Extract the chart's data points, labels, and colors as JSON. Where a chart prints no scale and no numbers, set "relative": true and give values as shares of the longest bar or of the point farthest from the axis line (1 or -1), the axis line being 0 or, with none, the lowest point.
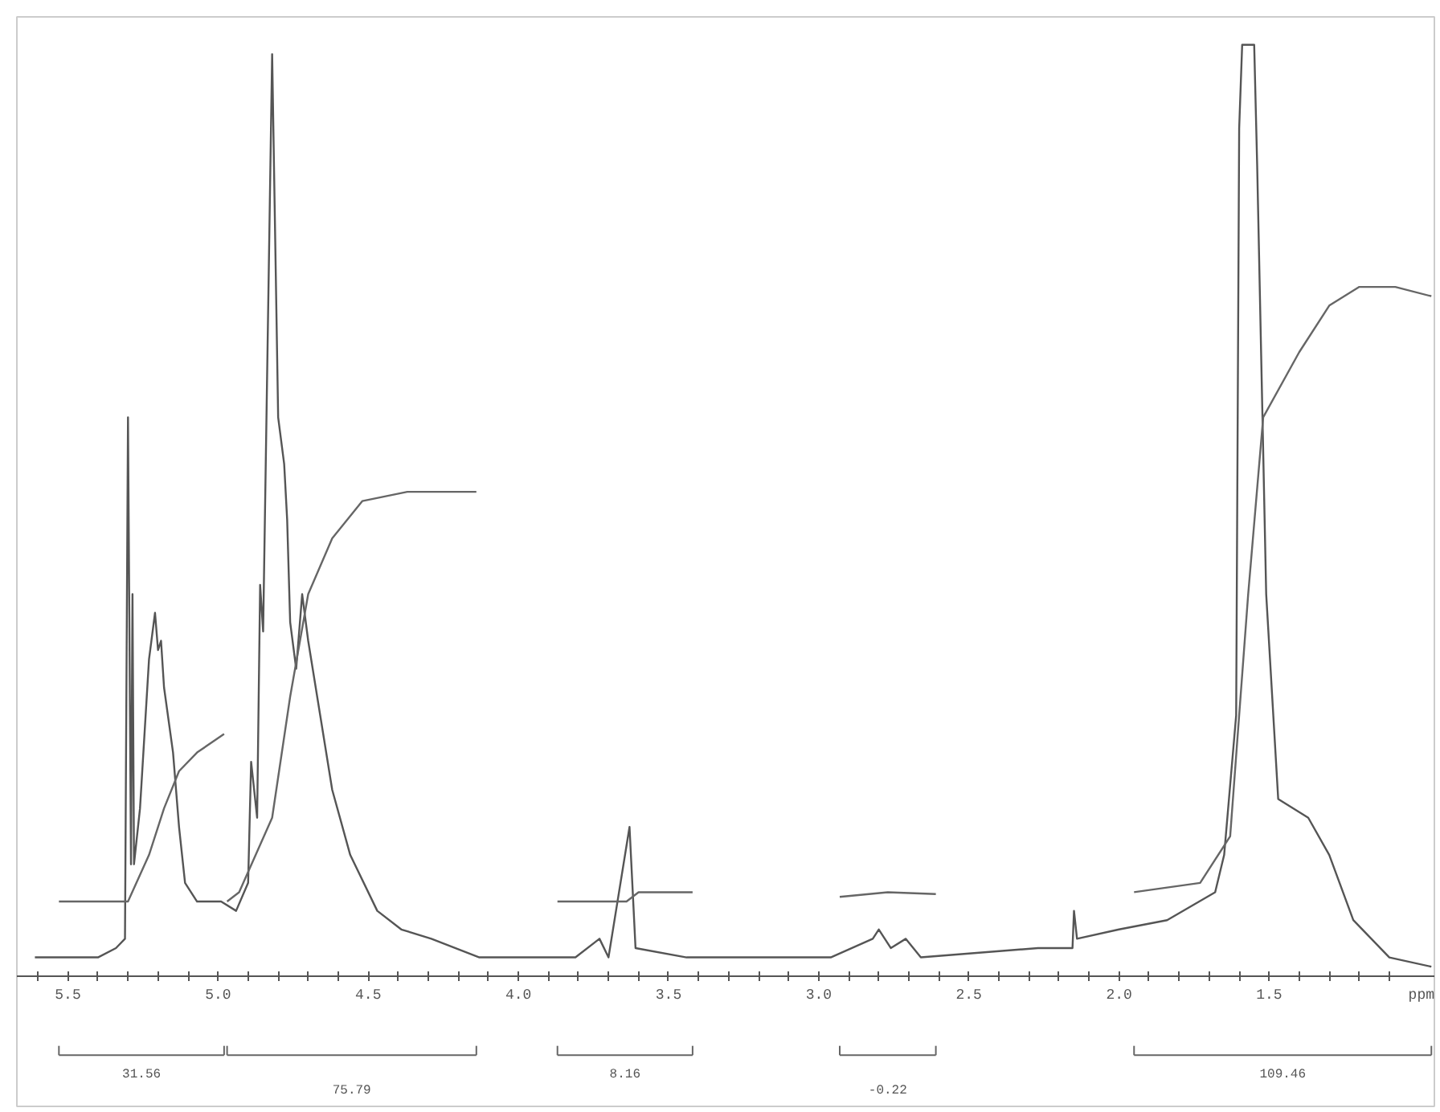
{
  "chart_data": {
    "type": "line",
    "relative": true,
    "xlabel": "ppm",
    "grid": false,
    "marker": "none",
    "line_style": "solid",
    "xlim": [
      5.67,
      0.95
    ],
    "xticks": [
      {
        "value": 5.6,
        "label": null
      },
      {
        "value": 5.5,
        "label": "5.5"
      },
      {
        "value": 5.4,
        "label": null
      },
      {
        "value": 5.3,
        "label": null
      },
      {
        "value": 5.2,
        "label": null
      },
      {
        "value": 5.1,
        "label": null
      },
      {
        "value": 5.0,
        "label": "5.0"
      },
      {
        "value": 4.9,
        "label": null
      },
      {
        "value": 4.8,
        "label": null
      },
      {
        "value": 4.7,
        "label": null
      },
      {
        "value": 4.6,
        "label": null
      },
      {
        "value": 4.5,
        "label": "4.5"
      },
      {
        "value": 4.4,
        "label": null
      },
      {
        "value": 4.3,
        "label": null
      },
      {
        "value": 4.2,
        "label": null
      },
      {
        "value": 4.1,
        "label": null
      },
      {
        "value": 4.0,
        "label": "4.0"
      },
      {
        "value": 3.9,
        "label": null
      },
      {
        "value": 3.8,
        "label": null
      },
      {
        "value": 3.7,
        "label": null
      },
      {
        "value": 3.6,
        "label": null
      },
      {
        "value": 3.5,
        "label": "3.5"
      },
      {
        "value": 3.4,
        "label": null
      },
      {
        "value": 3.3,
        "label": null
      },
      {
        "value": 3.2,
        "label": null
      },
      {
        "value": 3.1,
        "label": null
      },
      {
        "value": 3.0,
        "label": "3.0"
      },
      {
        "value": 2.9,
        "label": null
      },
      {
        "value": 2.8,
        "label": null
      },
      {
        "value": 2.7,
        "label": null
      },
      {
        "value": 2.6,
        "label": null
      },
      {
        "value": 2.5,
        "label": "2.5"
      },
      {
        "value": 2.4,
        "label": null
      },
      {
        "value": 2.3,
        "label": null
      },
      {
        "value": 2.2,
        "label": null
      },
      {
        "value": 2.1,
        "label": null
      },
      {
        "value": 2.0,
        "label": "2.0"
      },
      {
        "value": 1.9,
        "label": null
      },
      {
        "value": 1.8,
        "label": null
      },
      {
        "value": 1.7,
        "label": null
      },
      {
        "value": 1.6,
        "label": null
      },
      {
        "value": 1.5,
        "label": "1.5"
      },
      {
        "value": 1.4,
        "label": null
      },
      {
        "value": 1.3,
        "label": null
      },
      {
        "value": 1.2,
        "label": null
      },
      {
        "value": 1.1,
        "label": null
      }
    ],
    "series": [
      {
        "color": "#555555",
        "x": [
          5.61,
          5.4,
          5.34,
          5.31,
          5.3,
          5.29,
          5.285,
          5.28,
          5.26,
          5.23,
          5.21,
          5.2,
          5.19,
          5.18,
          5.15,
          5.13,
          5.11,
          5.07,
          4.99,
          4.94,
          4.9,
          4.89,
          4.87,
          4.86,
          4.85,
          4.82,
          4.8,
          4.78,
          4.77,
          4.76,
          4.74,
          4.72,
          4.7,
          4.66,
          4.62,
          4.56,
          4.47,
          4.39,
          4.29,
          4.13,
          3.81,
          3.73,
          3.7,
          3.63,
          3.61,
          3.44,
          2.96,
          2.82,
          2.8,
          2.76,
          2.71,
          2.66,
          2.27,
          2.155,
          2.15,
          2.14,
          2.0,
          1.84,
          1.68,
          1.65,
          1.61,
          1.6,
          1.59,
          1.55,
          1.54,
          1.51,
          1.47,
          1.37,
          1.3,
          1.22,
          1.1,
          0.96
        ],
        "values": [
          0.02,
          0.02,
          0.03,
          0.04,
          0.6,
          0.12,
          0.41,
          0.12,
          0.18,
          0.34,
          0.39,
          0.35,
          0.36,
          0.31,
          0.24,
          0.16,
          0.1,
          0.08,
          0.08,
          0.07,
          0.1,
          0.23,
          0.17,
          0.42,
          0.37,
          0.99,
          0.6,
          0.55,
          0.49,
          0.38,
          0.33,
          0.41,
          0.36,
          0.28,
          0.2,
          0.13,
          0.07,
          0.05,
          0.04,
          0.02,
          0.02,
          0.04,
          0.02,
          0.16,
          0.03,
          0.02,
          0.02,
          0.04,
          0.05,
          0.03,
          0.04,
          0.02,
          0.03,
          0.03,
          0.07,
          0.04,
          0.05,
          0.06,
          0.09,
          0.13,
          0.28,
          0.91,
          1.0,
          1.0,
          0.87,
          0.41,
          0.19,
          0.17,
          0.13,
          0.06,
          0.02,
          0.01
        ]
      },
      {
        "color": "#666666",
        "x": [
          5.53,
          5.3,
          5.23,
          5.18,
          5.13,
          5.07,
          4.98
        ],
        "values": [
          0.08,
          0.08,
          0.13,
          0.18,
          0.22,
          0.24,
          0.26
        ]
      },
      {
        "color": "#666666",
        "x": [
          4.97,
          4.93,
          4.82,
          4.76,
          4.7,
          4.62,
          4.52,
          4.37,
          4.14
        ],
        "values": [
          0.08,
          0.09,
          0.17,
          0.3,
          0.41,
          0.47,
          0.51,
          0.52,
          0.52
        ]
      },
      {
        "color": "#666666",
        "x": [
          3.87,
          3.64,
          3.6,
          3.42
        ],
        "values": [
          0.08,
          0.08,
          0.09,
          0.09
        ]
      },
      {
        "color": "#666666",
        "x": [
          2.93,
          2.77,
          2.61
        ],
        "values": [
          0.085,
          0.09,
          0.088
        ]
      },
      {
        "color": "#666666",
        "x": [
          1.95,
          1.73,
          1.63,
          1.57,
          1.52,
          1.4,
          1.3,
          1.2,
          1.08,
          0.96
        ],
        "values": [
          0.09,
          0.1,
          0.15,
          0.41,
          0.6,
          0.67,
          0.72,
          0.74,
          0.74,
          0.73
        ]
      }
    ],
    "annotations": [
      "31.56",
      "75.79",
      "8.16",
      "-0.22",
      "109.46"
    ]
  }
}
